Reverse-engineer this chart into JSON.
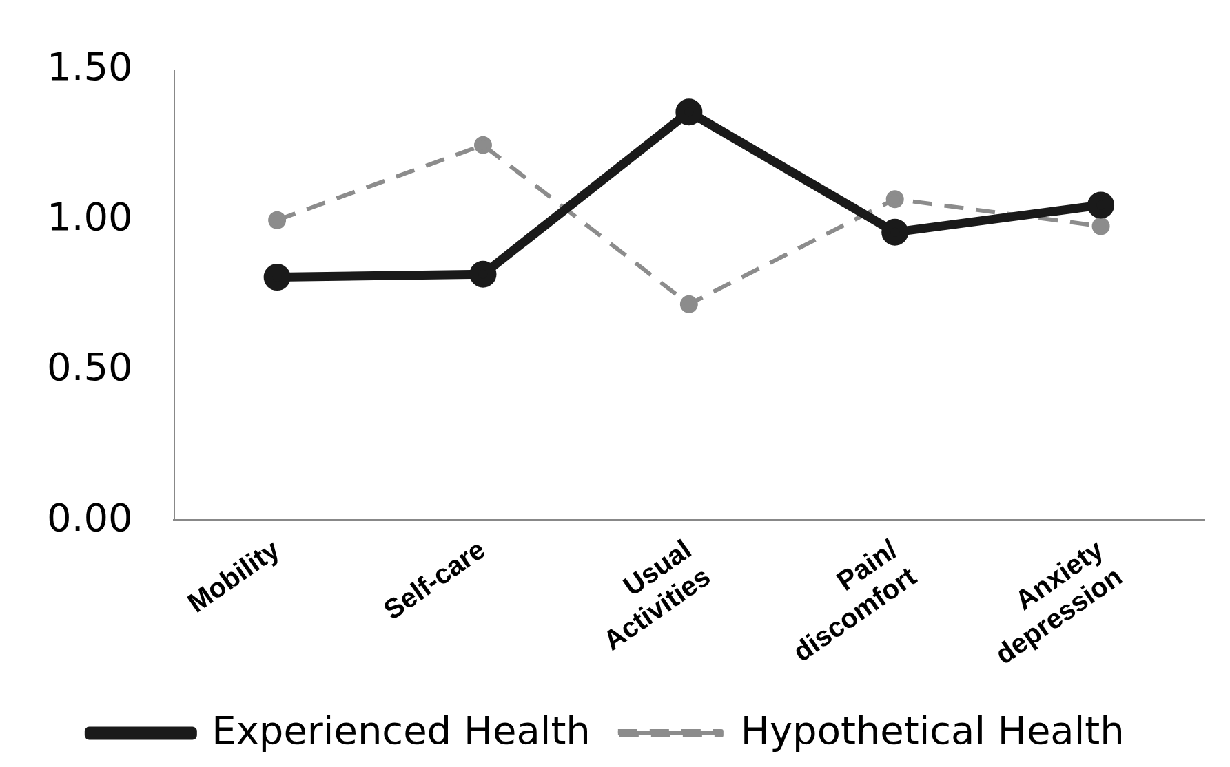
{
  "chart_data": {
    "type": "line",
    "categories": [
      "Mobility",
      "Self-care",
      "Usual Activities",
      "Pain/discomfort",
      "Anxiety depression"
    ],
    "series": [
      {
        "name": "Experienced Health",
        "color": "#1a1a1a",
        "values": [
          0.81,
          0.82,
          1.36,
          0.96,
          1.05
        ],
        "line_style": "solid"
      },
      {
        "name": "Hypothetical Health",
        "color": "#8c8c8c",
        "values": [
          1.0,
          1.25,
          0.72,
          1.07,
          0.98
        ],
        "line_style": "dashed"
      }
    ],
    "ylim": [
      0,
      1.5
    ],
    "yticks": [
      {
        "value": 0,
        "label": "0.00"
      },
      {
        "value": 0.5,
        "label": "0.50"
      },
      {
        "value": 1,
        "label": "1.00"
      },
      {
        "value": 1.5,
        "label": "1.50"
      }
    ],
    "grid": false,
    "legend": "bottom",
    "marker": "circle"
  }
}
